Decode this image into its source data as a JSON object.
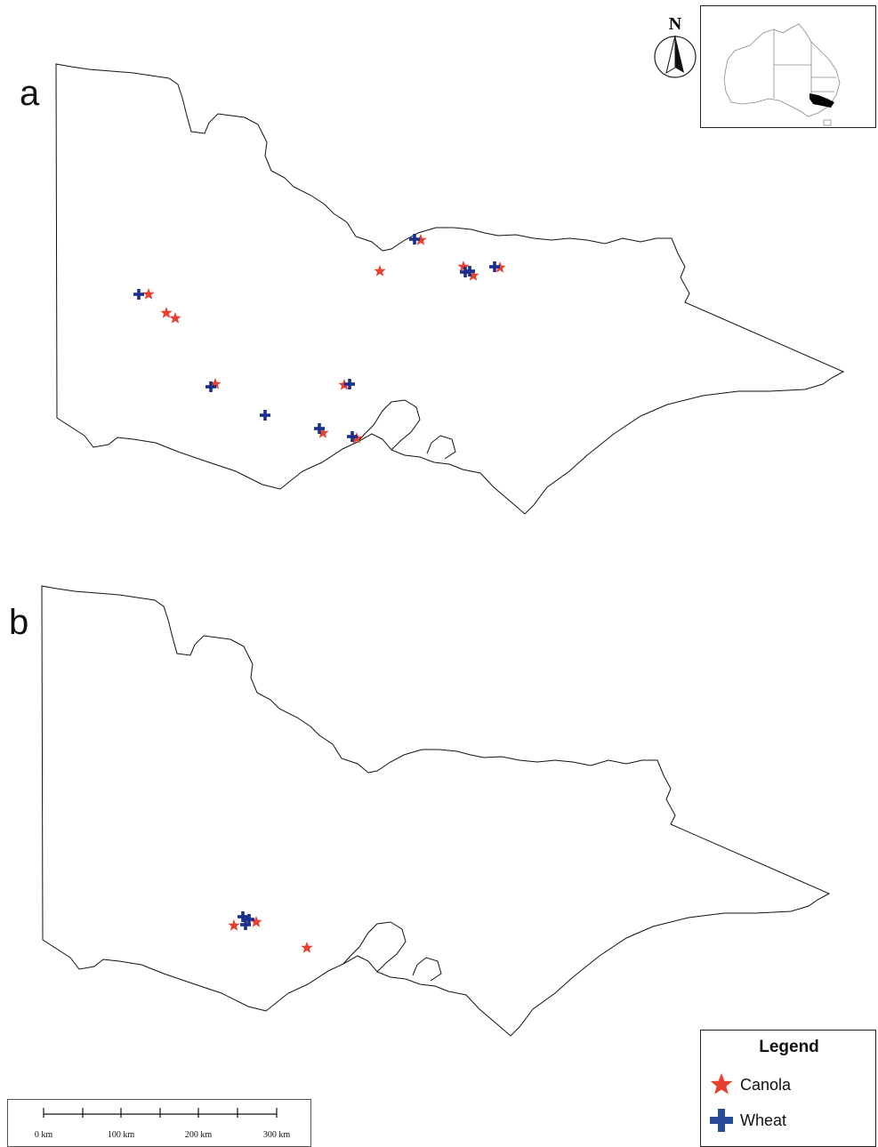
{
  "panels": {
    "a": {
      "label": "a"
    },
    "b": {
      "label": "b"
    }
  },
  "north_arrow": {
    "letter": "N"
  },
  "legend": {
    "title": "Legend",
    "items": [
      {
        "label": "Canola",
        "symbol": "star",
        "color": "#e8402f"
      },
      {
        "label": "Wheat",
        "symbol": "cross",
        "color": "#1c2f8c"
      }
    ]
  },
  "scale_bar": {
    "labels": [
      "0 km",
      "100 km",
      "200 km",
      "300 km"
    ]
  },
  "colors": {
    "canola": "#e8402f",
    "wheat": "#1c2f8c",
    "outline": "#111111",
    "inset_highlight": "#000000"
  }
}
